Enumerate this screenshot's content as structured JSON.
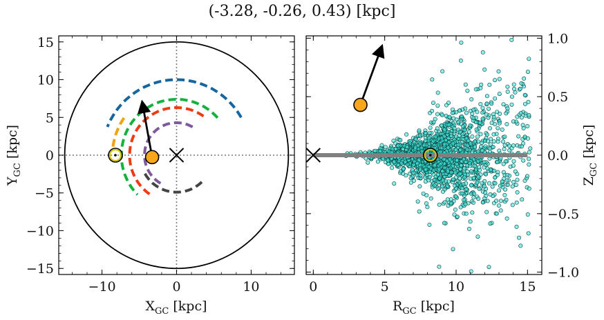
{
  "figure": {
    "title": "(-3.28, -0.26, 0.43) [kpc]"
  },
  "chart_data": [
    {
      "type": "line",
      "panel": "left",
      "xlabel": "X_{GC} [kpc]",
      "ylabel": "Y_{GC} [kpc]",
      "xlabel_text": "X",
      "xlabel_sub": "GC",
      "xlabel_unit": " [kpc]",
      "ylabel_text": "Y",
      "ylabel_sub": "GC",
      "ylabel_unit": " [kpc]",
      "xlim": [
        -15.8,
        15.8
      ],
      "ylim": [
        -15.8,
        15.8
      ],
      "xticks": [
        -10,
        0,
        10
      ],
      "xtick_labels": [
        "−10",
        "0",
        "10"
      ],
      "yticks": [
        -15,
        -10,
        -5,
        0,
        5,
        10,
        15
      ],
      "ytick_labels": [
        "−15",
        "−10",
        "−5",
        "0",
        "5",
        "10",
        "15"
      ],
      "grid": false,
      "galaxy_boundary_radius": 15,
      "galactic_center": [
        0,
        0
      ],
      "sun_position": [
        -8.2,
        0
      ],
      "target_position": [
        -3.28,
        -0.26
      ],
      "velocity_arrow_end": [
        -4.6,
        7.0
      ],
      "spiral_arms": [
        {
          "color": "#1565a0",
          "r": 10.0,
          "theta_start_deg": 30,
          "theta_end_deg": 158
        },
        {
          "color": "#14b13c",
          "r": 7.4,
          "theta_start_deg": 42,
          "theta_end_deg": 225
        },
        {
          "color": "#f2a20d",
          "r": 8.6,
          "theta_start_deg": 145,
          "theta_end_deg": 175
        },
        {
          "color": "#ef3b12",
          "r": 6.3,
          "theta_start_deg": 55,
          "theta_end_deg": 235
        },
        {
          "color": "#7d5a9c",
          "r": 4.3,
          "theta_start_deg": 60,
          "theta_end_deg": 240
        },
        {
          "color": "#444444",
          "r": 4.9,
          "theta_start_deg": 210,
          "theta_end_deg": 320
        }
      ]
    },
    {
      "type": "scatter",
      "panel": "right",
      "xlabel": "R_{GC} [kpc]",
      "ylabel": "Z_{GC} [kpc]",
      "xlabel_text": "R",
      "xlabel_sub": "GC",
      "xlabel_unit": " [kpc]",
      "ylabel_text": "Z",
      "ylabel_sub": "GC",
      "ylabel_unit": " [kpc]",
      "xlim": [
        -0.5,
        16.0
      ],
      "ylim": [
        -1.02,
        1.02
      ],
      "xticks": [
        0,
        5,
        10,
        15
      ],
      "xtick_labels": [
        "0",
        "5",
        "10",
        "15"
      ],
      "yticks": [
        -1.0,
        -0.5,
        0.0,
        0.5,
        1.0
      ],
      "ytick_labels": [
        "−1.0",
        "−0.5",
        "0.0",
        "0.5",
        "1.0"
      ],
      "grid": false,
      "disk_midplane": {
        "x": [
          0,
          15
        ],
        "y": [
          0,
          0
        ],
        "color": "#808080"
      },
      "galactic_center": [
        0,
        0
      ],
      "sun_position": [
        8.2,
        0
      ],
      "target_position": [
        3.3,
        0.43
      ],
      "velocity_arrow_end": [
        4.8,
        0.93
      ],
      "star_cloud": {
        "color": "#3de8dc",
        "center": [
          8.5,
          0.0
        ],
        "count": 1800,
        "r_range": [
          2.0,
          15.2
        ],
        "z_spread_at_sun": 0.12
      }
    }
  ]
}
